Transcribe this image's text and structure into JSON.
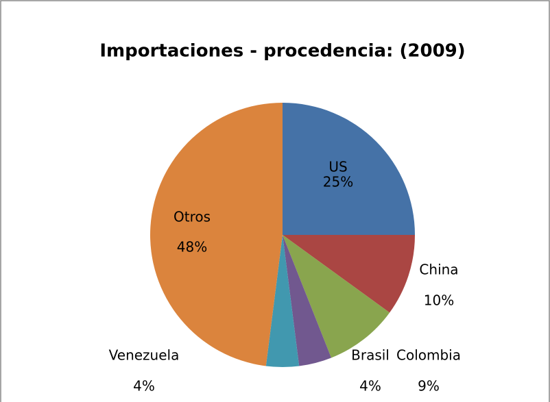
{
  "chart_data": {
    "type": "pie",
    "title": "Importaciones - procedencia: (2009)",
    "categories": [
      "US",
      "China",
      "Colombia",
      "Brasil",
      "Venezuela",
      "Otros"
    ],
    "values": [
      25,
      10,
      9,
      4,
      4,
      48
    ],
    "value_labels": [
      "25%",
      "10%",
      "9%",
      "4%",
      "4%",
      "48%"
    ],
    "colors": [
      "#4572a7",
      "#aa4643",
      "#89a54e",
      "#71588f",
      "#4198af",
      "#db843d"
    ]
  }
}
